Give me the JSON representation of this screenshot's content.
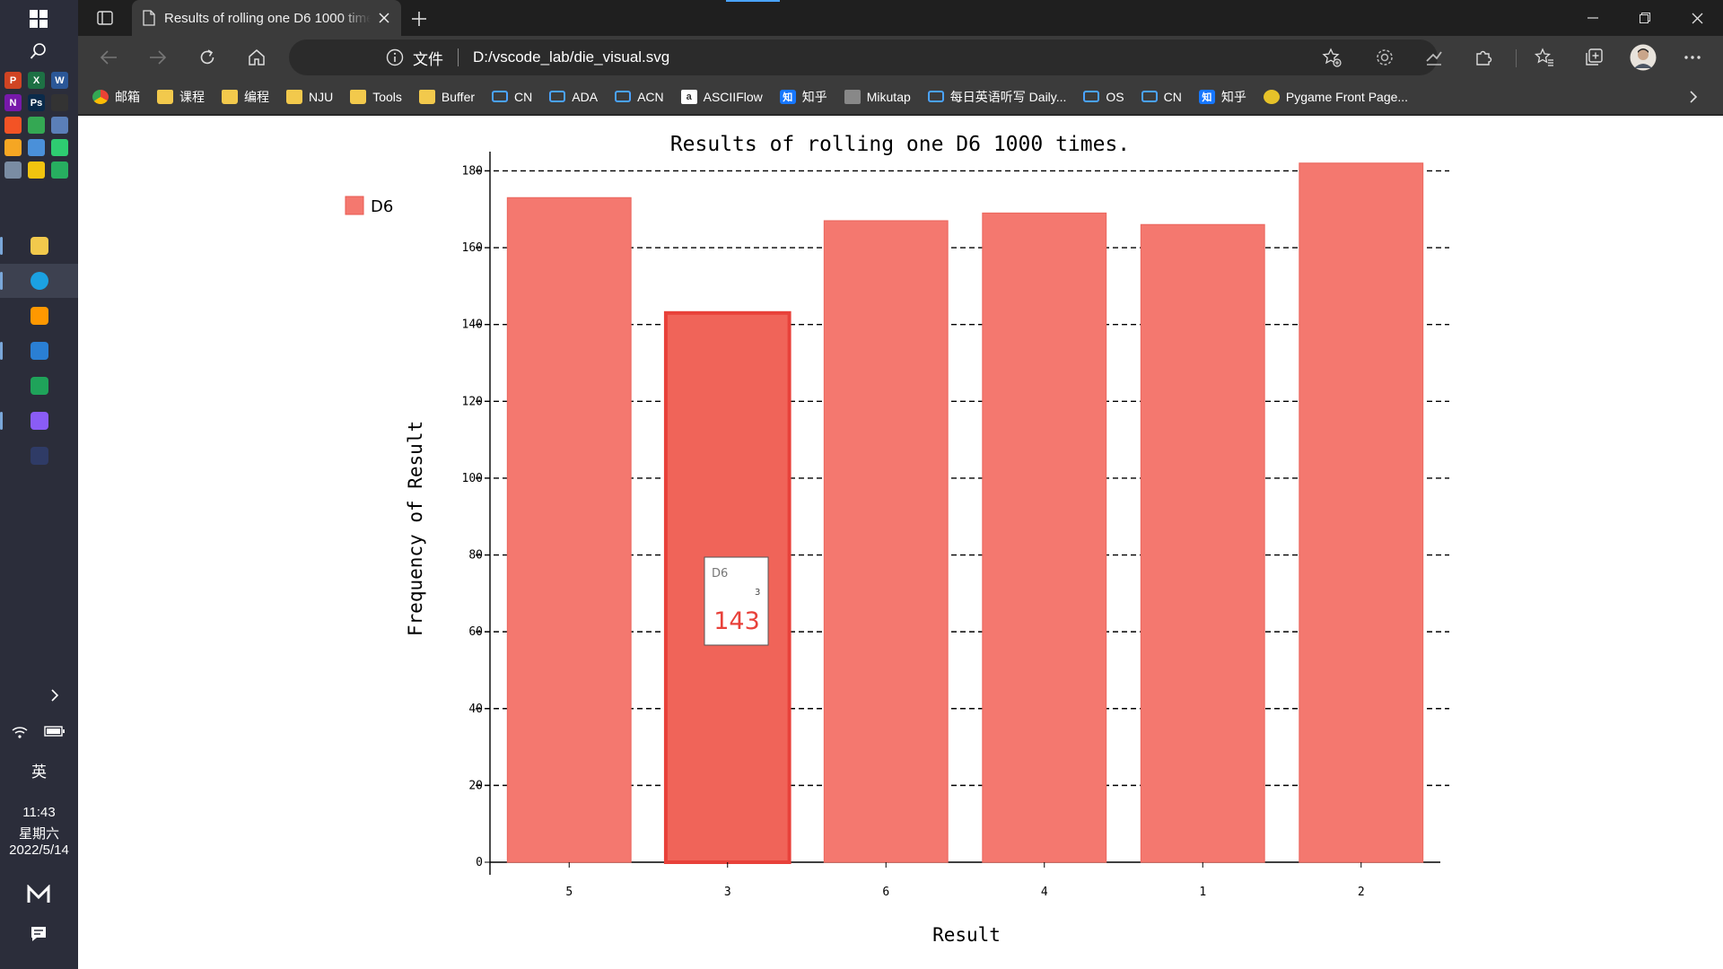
{
  "taskbar": {
    "time": "11:43",
    "weekday": "星期六",
    "date": "2022/5/14",
    "ime": "英",
    "pinned": [
      {
        "name": "file-explorer",
        "color": "#f2c94c"
      },
      {
        "name": "edge",
        "color": "#1ba1e2"
      },
      {
        "name": "sublime",
        "color": "#ff9800"
      },
      {
        "name": "vscode",
        "color": "#2a7fd4"
      },
      {
        "name": "vim",
        "color": "#1fa35a"
      },
      {
        "name": "obsidian",
        "color": "#8a5cf6"
      },
      {
        "name": "app-dark",
        "color": "#2f3b66"
      }
    ],
    "mini_apps": [
      {
        "label": "P",
        "color": "#d04423"
      },
      {
        "label": "X",
        "color": "#1d7044"
      },
      {
        "label": "W",
        "color": "#2b5797"
      },
      {
        "label": "N",
        "color": "#7719aa"
      },
      {
        "label": "Ps",
        "color": "#0a2a4a"
      },
      {
        "label": "",
        "color": "#333333"
      },
      {
        "label": "",
        "color": "#f35325"
      },
      {
        "label": "",
        "color": "#34a853"
      },
      {
        "label": "",
        "color": "#5b7fb8"
      },
      {
        "label": "",
        "color": "#f5a623"
      },
      {
        "label": "",
        "color": "#4a90d9"
      },
      {
        "label": "",
        "color": "#2ecc71"
      },
      {
        "label": "",
        "color": "#7a8ca3"
      },
      {
        "label": "",
        "color": "#f1c40f"
      },
      {
        "label": "",
        "color": "#27ae60"
      }
    ]
  },
  "browser": {
    "tab_title": "Results of rolling one D6 1000 times.",
    "address_label": "文件",
    "url": "D:/vscode_lab/die_visual.svg",
    "bookmarks": [
      {
        "label": "邮箱",
        "icon": "circle"
      },
      {
        "label": "课程",
        "icon": "folder"
      },
      {
        "label": "编程",
        "icon": "folder"
      },
      {
        "label": "NJU",
        "icon": "folder"
      },
      {
        "label": "Tools",
        "icon": "folder"
      },
      {
        "label": "Buffer",
        "icon": "folder"
      },
      {
        "label": "CN",
        "icon": "tv"
      },
      {
        "label": "ADA",
        "icon": "tv"
      },
      {
        "label": "ACN",
        "icon": "tv"
      },
      {
        "label": "ASCIIFlow",
        "icon": "ascii"
      },
      {
        "label": "知乎",
        "icon": "zh"
      },
      {
        "label": "Mikutap",
        "icon": "img"
      },
      {
        "label": "每日英语听写 Daily...",
        "icon": "tv"
      },
      {
        "label": "OS",
        "icon": "tv"
      },
      {
        "label": "CN",
        "icon": "tv"
      },
      {
        "label": "知乎",
        "icon": "zh"
      },
      {
        "label": "Pygame Front Page...",
        "icon": "snake"
      }
    ]
  },
  "chart_data": {
    "type": "bar",
    "title": "Results of rolling one D6 1000 times.",
    "xlabel": "Result",
    "ylabel": "Frequency of Result",
    "categories": [
      "5",
      "3",
      "6",
      "4",
      "1",
      "2"
    ],
    "values": [
      173,
      143,
      167,
      169,
      166,
      182
    ],
    "series": [
      {
        "name": "D6",
        "color": "#f4786f"
      }
    ],
    "ylim": [
      0,
      185
    ],
    "yticks": [
      0,
      20,
      40,
      60,
      80,
      100,
      120,
      140,
      160,
      180
    ],
    "grid": "horizontal dashed",
    "legend": "top-left",
    "tooltip": {
      "series": "D6",
      "category": "3",
      "value": "143"
    },
    "highlight_index": 1,
    "highlight_color": "#f06459"
  }
}
